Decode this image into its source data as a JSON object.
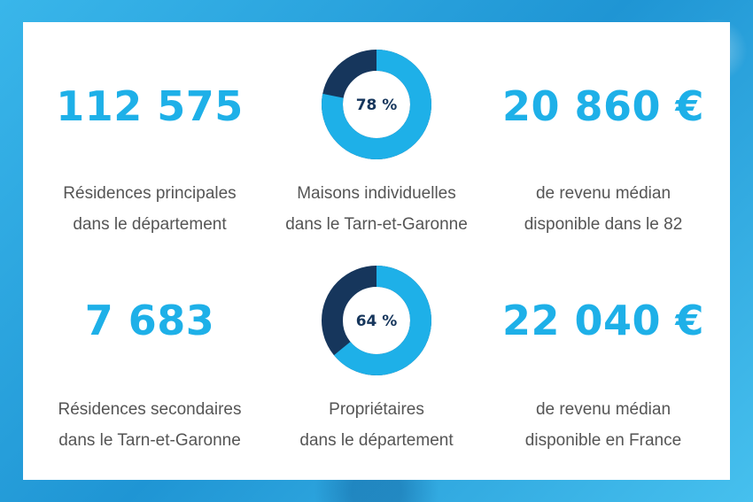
{
  "colors": {
    "accent": "#1eb0e8",
    "dark": "#16365c",
    "text": "#555555"
  },
  "row1": {
    "residences_principales": {
      "value": "112 575",
      "line1": "Résidences principales",
      "line2": "dans le département"
    },
    "maisons_individuelles": {
      "percent_label": "78 %",
      "percent": 78,
      "line1": "Maisons individuelles",
      "line2": "dans le Tarn-et-Garonne"
    },
    "revenu_82": {
      "value": "20 860 €",
      "line1": "de revenu médian",
      "line2": "disponible dans le 82"
    }
  },
  "row2": {
    "residences_secondaires": {
      "value": "7 683",
      "line1": "Résidences secondaires",
      "line2": "dans le Tarn-et-Garonne"
    },
    "proprietaires": {
      "percent_label": "64 %",
      "percent": 64,
      "line1": "Propriétaires",
      "line2": "dans le département"
    },
    "revenu_france": {
      "value": "22 040 €",
      "line1": "de revenu médian",
      "line2": "disponible en France"
    }
  }
}
